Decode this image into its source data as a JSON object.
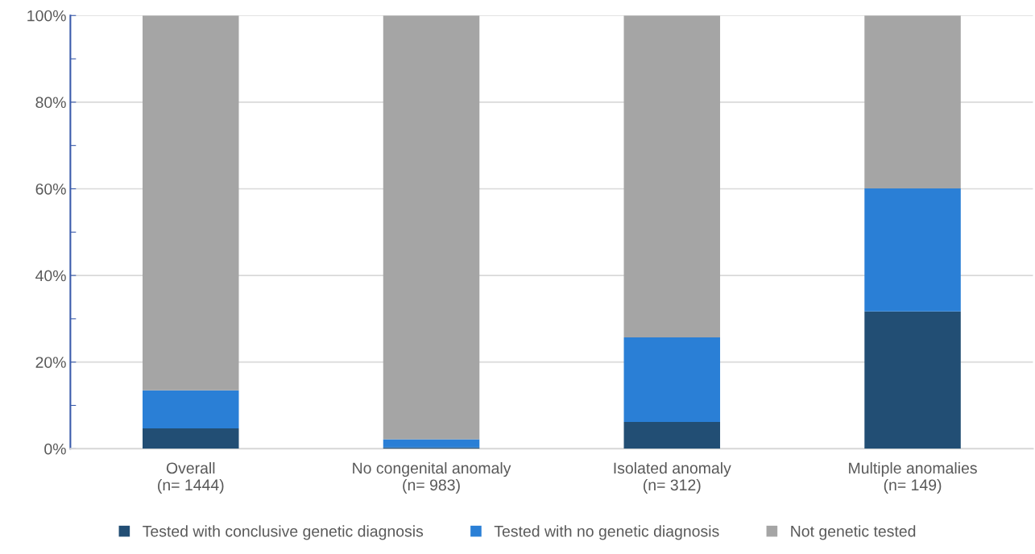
{
  "chart_data": {
    "type": "bar",
    "stacked": true,
    "categories": [
      "Overall\n(n= 1444)",
      "No congenital anomaly\n(n= 983)",
      "Isolated anomaly\n(n= 312)",
      "Multiple anomalies\n(n= 149)"
    ],
    "series": [
      {
        "name": "Tested with conclusive genetic diagnosis",
        "color": "#224e74",
        "values": [
          4.7,
          0.3,
          6.2,
          31.7
        ]
      },
      {
        "name": "Tested with no genetic diagnosis",
        "color": "#2a7fd6",
        "values": [
          8.8,
          1.9,
          19.5,
          28.4
        ]
      },
      {
        "name": "Not genetic tested",
        "color": "#a5a5a5",
        "values": [
          86.5,
          97.8,
          74.3,
          39.9
        ]
      }
    ],
    "ylim": [
      0,
      100
    ],
    "yticks": [
      {
        "value": 0,
        "label": "0%"
      },
      {
        "value": 10,
        "label": null
      },
      {
        "value": 20,
        "label": "20%"
      },
      {
        "value": 30,
        "label": null
      },
      {
        "value": 40,
        "label": "40%"
      },
      {
        "value": 50,
        "label": null
      },
      {
        "value": 60,
        "label": "60%"
      },
      {
        "value": 70,
        "label": null
      },
      {
        "value": 80,
        "label": "80%"
      },
      {
        "value": 90,
        "label": null
      },
      {
        "value": 100,
        "label": "100%"
      }
    ],
    "grid": "y",
    "legend": "bottom"
  }
}
